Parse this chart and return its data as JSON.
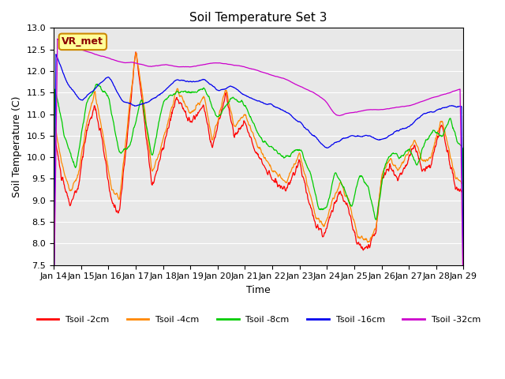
{
  "title": "Soil Temperature Set 3",
  "xlabel": "Time",
  "ylabel": "Soil Temperature (C)",
  "ylim": [
    7.5,
    13.0
  ],
  "yticks": [
    7.5,
    8.0,
    8.5,
    9.0,
    9.5,
    10.0,
    10.5,
    11.0,
    11.5,
    12.0,
    12.5,
    13.0
  ],
  "x_labels": [
    "Jan 14",
    "Jan 15",
    "Jan 16",
    "Jan 17",
    "Jan 18",
    "Jan 19",
    "Jan 20",
    "Jan 21",
    "Jan 22",
    "Jan 23",
    "Jan 24",
    "Jan 25",
    "Jan 26",
    "Jan 27",
    "Jan 28",
    "Jan 29"
  ],
  "n_days": 15,
  "colors": {
    "Tsoil -2cm": "#ff0000",
    "Tsoil -4cm": "#ff8800",
    "Tsoil -8cm": "#00cc00",
    "Tsoil -16cm": "#0000ee",
    "Tsoil -32cm": "#cc00cc"
  },
  "bg_color": "#e8e8e8",
  "annotation_text": "VR_met",
  "annotation_box_color": "#ffff99",
  "annotation_border_color": "#cc8800"
}
